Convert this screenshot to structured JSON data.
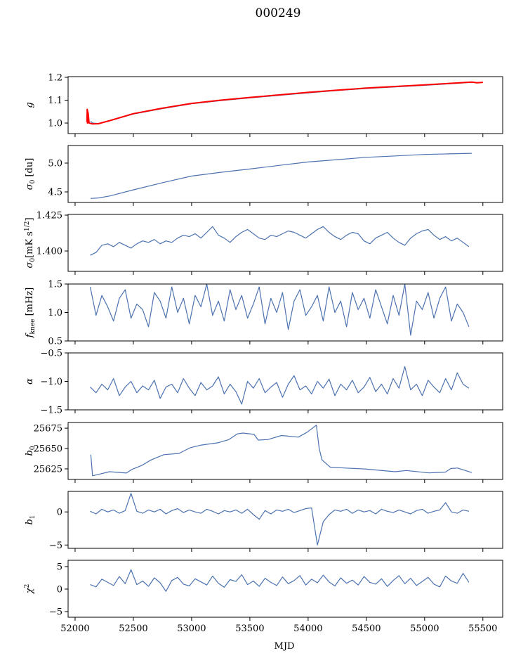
{
  "title": "000249",
  "colors": {
    "series": "#4c72b0",
    "model": "#ff0000"
  },
  "chart_data": {
    "type": "line",
    "layout": "8 vertically stacked panels sharing x axis",
    "xlabel": "MJD",
    "xlim": [
      51940,
      55670
    ],
    "xticks": [
      52000,
      52500,
      53000,
      53500,
      54000,
      54500,
      55000,
      55500
    ],
    "x_noise": [
      52130,
      52180,
      52230,
      52280,
      52330,
      52380,
      52430,
      52480,
      52530,
      52580,
      52630,
      52680,
      52730,
      52780,
      52830,
      52880,
      52930,
      52980,
      53030,
      53080,
      53130,
      53180,
      53230,
      53280,
      53330,
      53380,
      53430,
      53480,
      53530,
      53580,
      53630,
      53680,
      53730,
      53780,
      53830,
      53880,
      53930,
      53980,
      54030,
      54080,
      54130,
      54180,
      54230,
      54280,
      54330,
      54380,
      54430,
      54480,
      54530,
      54580,
      54630,
      54680,
      54730,
      54780,
      54830,
      54880,
      54930,
      54980,
      55030,
      55080,
      55130,
      55180,
      55230,
      55280,
      55330,
      55380
    ],
    "panels": [
      {
        "ylabel": [
          {
            "t": "g",
            "s": "i"
          }
        ],
        "ylim": [
          0.954,
          1.203
        ],
        "yticks": [
          "1.0",
          "1.1",
          "1.2"
        ],
        "ytick_values": [
          1.0,
          1.1,
          1.2
        ],
        "series": [
          {
            "name": "data",
            "color": "series",
            "x": [
              52133,
              52150,
              52200,
              52300,
              52500,
              52750,
              53000,
              53250,
              53500,
              53750,
              54000,
              54250,
              54500,
              54750,
              55000,
              55200,
              55404
            ],
            "y": [
              1.008,
              1.0,
              0.998,
              1.01,
              1.039,
              1.063,
              1.084,
              1.098,
              1.11,
              1.121,
              1.132,
              1.142,
              1.151,
              1.158,
              1.165,
              1.171,
              1.178
            ]
          },
          {
            "name": "model",
            "color": "model",
            "x": [
              52102,
              52104,
              52106,
              52108,
              52110,
              52112,
              52120,
              52150,
              52200,
              52300,
              52500,
              52750,
              53000,
              53250,
              53500,
              53750,
              54000,
              54250,
              54500,
              54750,
              55000,
              55200,
              55404,
              55450,
              55500
            ],
            "y": [
              1.005,
              1.06,
              1.0,
              1.053,
              1.003,
              1.045,
              1.0,
              0.996,
              0.997,
              1.011,
              1.041,
              1.065,
              1.086,
              1.1,
              1.112,
              1.123,
              1.134,
              1.144,
              1.153,
              1.16,
              1.167,
              1.173,
              1.179,
              1.176,
              1.178
            ]
          }
        ]
      },
      {
        "ylabel": [
          {
            "t": "σ",
            "s": "i"
          },
          {
            "t": "0",
            "s": "sub"
          },
          {
            "t": " [du]",
            "s": "n"
          }
        ],
        "ylim": [
          4.317,
          5.305
        ],
        "yticks": [
          "4.5",
          "5.0"
        ],
        "ytick_values": [
          4.5,
          5.0
        ],
        "series": [
          {
            "name": "data",
            "color": "series",
            "x": [
              52133,
              52200,
              52300,
              52502,
              52750,
              52999,
              53250,
              53500,
              53750,
              54000,
              54250,
              54500,
              54750,
              55000,
              55200,
              55404
            ],
            "y": [
              4.387,
              4.395,
              4.43,
              4.537,
              4.66,
              4.774,
              4.84,
              4.898,
              4.96,
              5.02,
              5.06,
              5.1,
              5.125,
              5.15,
              5.16,
              5.17
            ]
          }
        ]
      },
      {
        "ylabel": [
          {
            "t": "σ",
            "s": "i"
          },
          {
            "t": "0",
            "s": "sub"
          },
          {
            "t": "[mK s",
            "s": "n"
          },
          {
            "t": "1/2",
            "s": "sup"
          },
          {
            "t": "]",
            "s": "n"
          }
        ],
        "ylim": [
          1.3858,
          1.4255
        ],
        "yticks": [
          "1.400",
          "1.425"
        ],
        "ytick_values": [
          1.4,
          1.425
        ],
        "series": [
          {
            "name": "data",
            "color": "series",
            "x": "x_noise",
            "y": [
              1.397,
              1.399,
              1.404,
              1.405,
              1.403,
              1.406,
              1.404,
              1.402,
              1.405,
              1.407,
              1.406,
              1.408,
              1.405,
              1.407,
              1.406,
              1.409,
              1.411,
              1.41,
              1.412,
              1.409,
              1.413,
              1.417,
              1.411,
              1.409,
              1.406,
              1.41,
              1.413,
              1.415,
              1.412,
              1.409,
              1.408,
              1.411,
              1.41,
              1.412,
              1.414,
              1.413,
              1.411,
              1.409,
              1.412,
              1.415,
              1.417,
              1.413,
              1.41,
              1.408,
              1.411,
              1.413,
              1.412,
              1.407,
              1.405,
              1.409,
              1.411,
              1.413,
              1.409,
              1.406,
              1.404,
              1.409,
              1.412,
              1.414,
              1.415,
              1.411,
              1.408,
              1.41,
              1.407,
              1.409,
              1.406,
              1.403
            ]
          }
        ]
      },
      {
        "ylabel": [
          {
            "t": "f",
            "s": "i"
          },
          {
            "t": "knee",
            "s": "sub"
          },
          {
            "t": " [mHz]",
            "s": "n"
          }
        ],
        "ylim": [
          0.5,
          1.5
        ],
        "yticks": [
          "0.5",
          "1.0",
          "1.5"
        ],
        "ytick_values": [
          0.5,
          1.0,
          1.5
        ],
        "series": [
          {
            "name": "data",
            "color": "series",
            "x": "x_noise",
            "y": [
              1.45,
              0.95,
              1.3,
              1.1,
              0.85,
              1.25,
              1.4,
              0.9,
              1.15,
              1.05,
              0.75,
              1.35,
              1.2,
              0.9,
              1.45,
              1.0,
              1.25,
              0.8,
              1.3,
              1.1,
              1.5,
              0.95,
              1.2,
              0.85,
              1.4,
              1.05,
              1.3,
              0.9,
              1.15,
              1.45,
              0.8,
              1.25,
              1.0,
              1.35,
              0.7,
              1.2,
              1.4,
              0.95,
              1.1,
              1.3,
              0.85,
              1.45,
              1.0,
              1.2,
              0.75,
              1.35,
              1.05,
              1.25,
              0.9,
              1.4,
              1.1,
              0.8,
              1.3,
              0.95,
              1.5,
              0.6,
              1.2,
              1.05,
              1.35,
              0.9,
              1.25,
              1.45,
              0.85,
              1.15,
              1.0,
              0.75
            ]
          }
        ]
      },
      {
        "ylabel": [
          {
            "t": "α",
            "s": "i"
          }
        ],
        "ylim": [
          -1.5,
          -0.5
        ],
        "yticks": [
          "−1.5",
          "−1.0",
          "−0.5"
        ],
        "ytick_values": [
          -1.5,
          -1.0,
          -0.5
        ],
        "series": [
          {
            "name": "data",
            "color": "series",
            "x": "x_noise",
            "y": [
              -1.1,
              -1.2,
              -1.05,
              -1.15,
              -0.95,
              -1.25,
              -1.1,
              -1.0,
              -1.2,
              -1.08,
              -1.15,
              -0.98,
              -1.3,
              -1.1,
              -1.05,
              -1.2,
              -0.95,
              -1.12,
              -1.25,
              -1.02,
              -1.15,
              -1.08,
              -0.92,
              -1.22,
              -1.05,
              -1.18,
              -1.4,
              -1.0,
              -1.12,
              -0.95,
              -1.2,
              -1.1,
              -1.02,
              -1.28,
              -1.05,
              -0.9,
              -1.15,
              -1.08,
              -1.22,
              -1.0,
              -1.12,
              -0.96,
              -1.25,
              -1.05,
              -1.15,
              -0.98,
              -1.2,
              -1.1,
              -0.93,
              -1.18,
              -1.05,
              -1.22,
              -0.95,
              -1.12,
              -0.74,
              -1.15,
              -1.05,
              -1.25,
              -0.98,
              -1.1,
              -1.2,
              -0.95,
              -1.15,
              -0.85,
              -1.05,
              -1.12
            ]
          }
        ]
      },
      {
        "ylabel": [
          {
            "t": "b",
            "s": "i"
          },
          {
            "t": "0",
            "s": "sub"
          }
        ],
        "ylim": [
          25612,
          25682
        ],
        "yticks": [
          "25625",
          "25650",
          "25675"
        ],
        "ytick_values": [
          25625,
          25650,
          25675
        ],
        "series": [
          {
            "name": "data",
            "color": "series",
            "x": [
              52133,
              52135,
              52150,
              52297,
              52440,
              52488,
              52570,
              52653,
              52761,
              52892,
              52988,
              53083,
              53225,
              53320,
              53392,
              53440,
              53536,
              53572,
              53654,
              53771,
              53916,
              53988,
              54071,
              54095,
              54119,
              54190,
              54320,
              54488,
              54747,
              54843,
              55036,
              55178,
              55226,
              55284,
              55404
            ],
            "y": [
              25642.4,
              25642,
              25616.5,
              25621.5,
              25619.9,
              25624.4,
              25629,
              25636,
              25642.4,
              25644,
              25651,
              25654.3,
              25657,
              25661,
              25668,
              25669,
              25667.4,
              25660.4,
              25661,
              25666,
              25664,
              25669.7,
              25678.6,
              25650.3,
              25636,
              25627,
              25626,
              25624.9,
              25621.5,
              25623,
              25620,
              25621,
              25625.5,
              25626,
              25620.5
            ]
          }
        ]
      },
      {
        "ylabel": [
          {
            "t": "b",
            "s": "i"
          },
          {
            "t": "1",
            "s": "sub"
          }
        ],
        "ylim": [
          -5.5,
          3.1
        ],
        "yticks": [
          "−5",
          "0"
        ],
        "ytick_values": [
          -5,
          0
        ],
        "series": [
          {
            "name": "data",
            "color": "series",
            "x": "x_noise",
            "y": [
              0.1,
              -0.3,
              0.4,
              0.0,
              0.3,
              -0.2,
              0.2,
              2.8,
              0.1,
              -0.2,
              0.3,
              0.0,
              0.4,
              -0.3,
              0.2,
              0.5,
              -0.1,
              0.3,
              0.0,
              -0.2,
              0.4,
              0.1,
              -0.3,
              0.2,
              0.0,
              0.3,
              -0.2,
              0.4,
              -0.4,
              -1.1,
              0.2,
              -0.3,
              0.3,
              0.1,
              0.4,
              -0.1,
              0.2,
              0.5,
              0.6,
              -5.0,
              -1.5,
              -0.4,
              0.3,
              0.1,
              0.4,
              -0.2,
              0.3,
              0.0,
              0.2,
              -0.3,
              0.4,
              0.1,
              -0.1,
              0.3,
              0.0,
              -0.3,
              0.2,
              0.4,
              -0.2,
              0.1,
              0.3,
              1.4,
              0.0,
              -0.2,
              0.3,
              0.1
            ]
          }
        ]
      },
      {
        "ylabel": [
          {
            "t": "χ",
            "s": "i"
          },
          {
            "t": "2",
            "s": "sup"
          }
        ],
        "ylim": [
          -6.25,
          6.4
        ],
        "yticks": [
          "−5",
          "0",
          "5"
        ],
        "ytick_values": [
          -5,
          0,
          5
        ],
        "series": [
          {
            "name": "data",
            "color": "series",
            "x": "x_noise",
            "y": [
              1.0,
              0.5,
              2.2,
              1.5,
              0.8,
              2.8,
              1.2,
              4.3,
              1.0,
              1.8,
              0.6,
              2.5,
              1.4,
              -0.5,
              1.9,
              2.6,
              1.1,
              0.7,
              2.3,
              1.6,
              0.9,
              2.9,
              1.3,
              0.4,
              2.1,
              1.7,
              3.2,
              1.0,
              1.8,
              0.6,
              2.4,
              1.5,
              0.8,
              2.7,
              1.2,
              1.9,
              3.0,
              0.9,
              2.2,
              1.4,
              3.1,
              1.6,
              0.7,
              2.5,
              1.3,
              2.0,
              0.9,
              2.8,
              1.5,
              1.1,
              2.3,
              0.6,
              1.9,
              3.0,
              1.2,
              2.4,
              0.8,
              1.7,
              2.6,
              1.1,
              0.5,
              2.9,
              1.8,
              1.3,
              3.5,
              1.5
            ]
          }
        ]
      }
    ]
  }
}
